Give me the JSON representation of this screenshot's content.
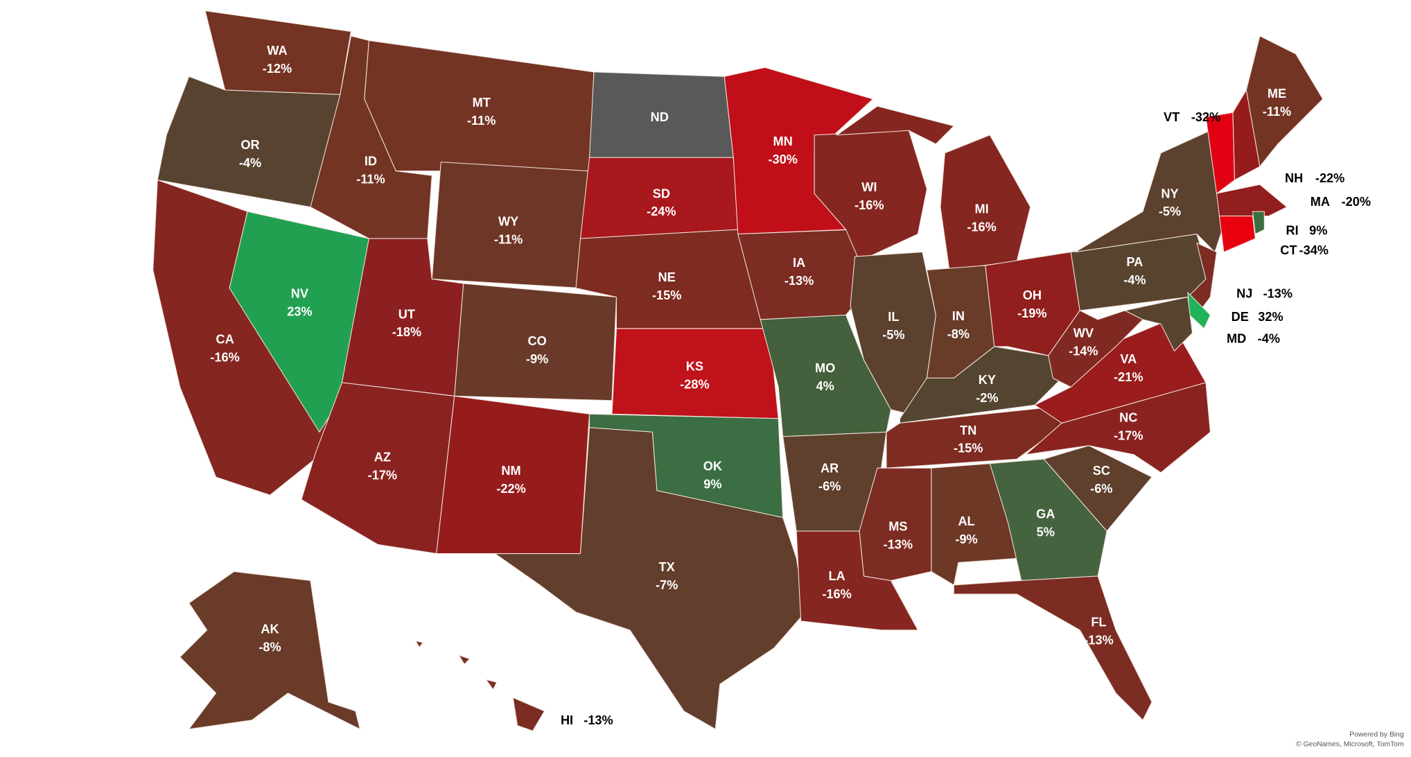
{
  "chart_data": {
    "type": "choropleth",
    "categories": [
      "WA",
      "OR",
      "CA",
      "NV",
      "ID",
      "MT",
      "WY",
      "UT",
      "CO",
      "AZ",
      "NM",
      "ND",
      "SD",
      "NE",
      "KS",
      "OK",
      "TX",
      "MN",
      "IA",
      "MO",
      "AR",
      "LA",
      "WI",
      "IL",
      "MI",
      "IN",
      "OH",
      "KY",
      "TN",
      "MS",
      "AL",
      "GA",
      "FL",
      "SC",
      "NC",
      "VA",
      "WV",
      "PA",
      "NY",
      "NJ",
      "DE",
      "MD",
      "VT",
      "NH",
      "ME",
      "MA",
      "CT",
      "RI",
      "AK",
      "HI"
    ],
    "values": [
      -12,
      -4,
      -16,
      23,
      -11,
      -11,
      -11,
      -18,
      -9,
      -17,
      -22,
      null,
      -24,
      -15,
      -28,
      9,
      -7,
      -30,
      -13,
      4,
      -6,
      -16,
      -16,
      -5,
      -16,
      -8,
      -19,
      -2,
      -15,
      -13,
      -9,
      5,
      -13,
      -6,
      -17,
      -21,
      -14,
      -4,
      -5,
      -13,
      32,
      -4,
      -32,
      -22,
      -11,
      -20,
      -34,
      9,
      -8,
      -13
    ],
    "value_labels": [
      "-12%",
      "-4%",
      "-16%",
      "23%",
      "-11%",
      "-11%",
      "-11%",
      "-18%",
      "-9%",
      "-17%",
      "-22%",
      null,
      "-24%",
      "-15%",
      "-28%",
      "9%",
      "-7%",
      "-30%",
      "-13%",
      "4%",
      "-6%",
      "-16%",
      "-16%",
      "-5%",
      "-16%",
      "-8%",
      "-19%",
      "-2%",
      "-15%",
      "-13%",
      "-9%",
      "5%",
      "-13%",
      "-6%",
      "-17%",
      "-21%",
      "-14%",
      "-4%",
      "-5%",
      "-13%",
      "32%",
      "-4%",
      "-32%",
      "-22%",
      "-11%",
      "-20%",
      "-34%",
      "9%",
      "-8%",
      "-13%"
    ],
    "colors": [
      "#743323",
      "#57432f",
      "#852620",
      "#22a052",
      "#743423",
      "#743423",
      "#6e3626",
      "#8c2020",
      "#693a29",
      "#8a2320",
      "#961c1c",
      "#595959",
      "#a8181c",
      "#7e2b22",
      "#c0121a",
      "#3b6e42",
      "#623e2c",
      "#c00f18",
      "#7c2c22",
      "#44603c",
      "#5e402d",
      "#852620",
      "#852620",
      "#5c412e",
      "#852620",
      "#693b29",
      "#901f1e",
      "#544530",
      "#7e2b22",
      "#7c2c22",
      "#6e3826",
      "#45633f",
      "#7c2c22",
      "#5e402d",
      "#8a2320",
      "#9a1c1c",
      "#802922",
      "#58432f",
      "#5c412e",
      "#7c2c22",
      "#1fb35a",
      "#58432f",
      "#e00012",
      "#961c1c",
      "#743423",
      "#921e1e",
      "#e8000f",
      "#3b6e42",
      "#6a3b28",
      "#7c2c22"
    ],
    "attribution": [
      "Powered by Bing",
      "© GeoNames, Microsoft, TomTom"
    ]
  }
}
